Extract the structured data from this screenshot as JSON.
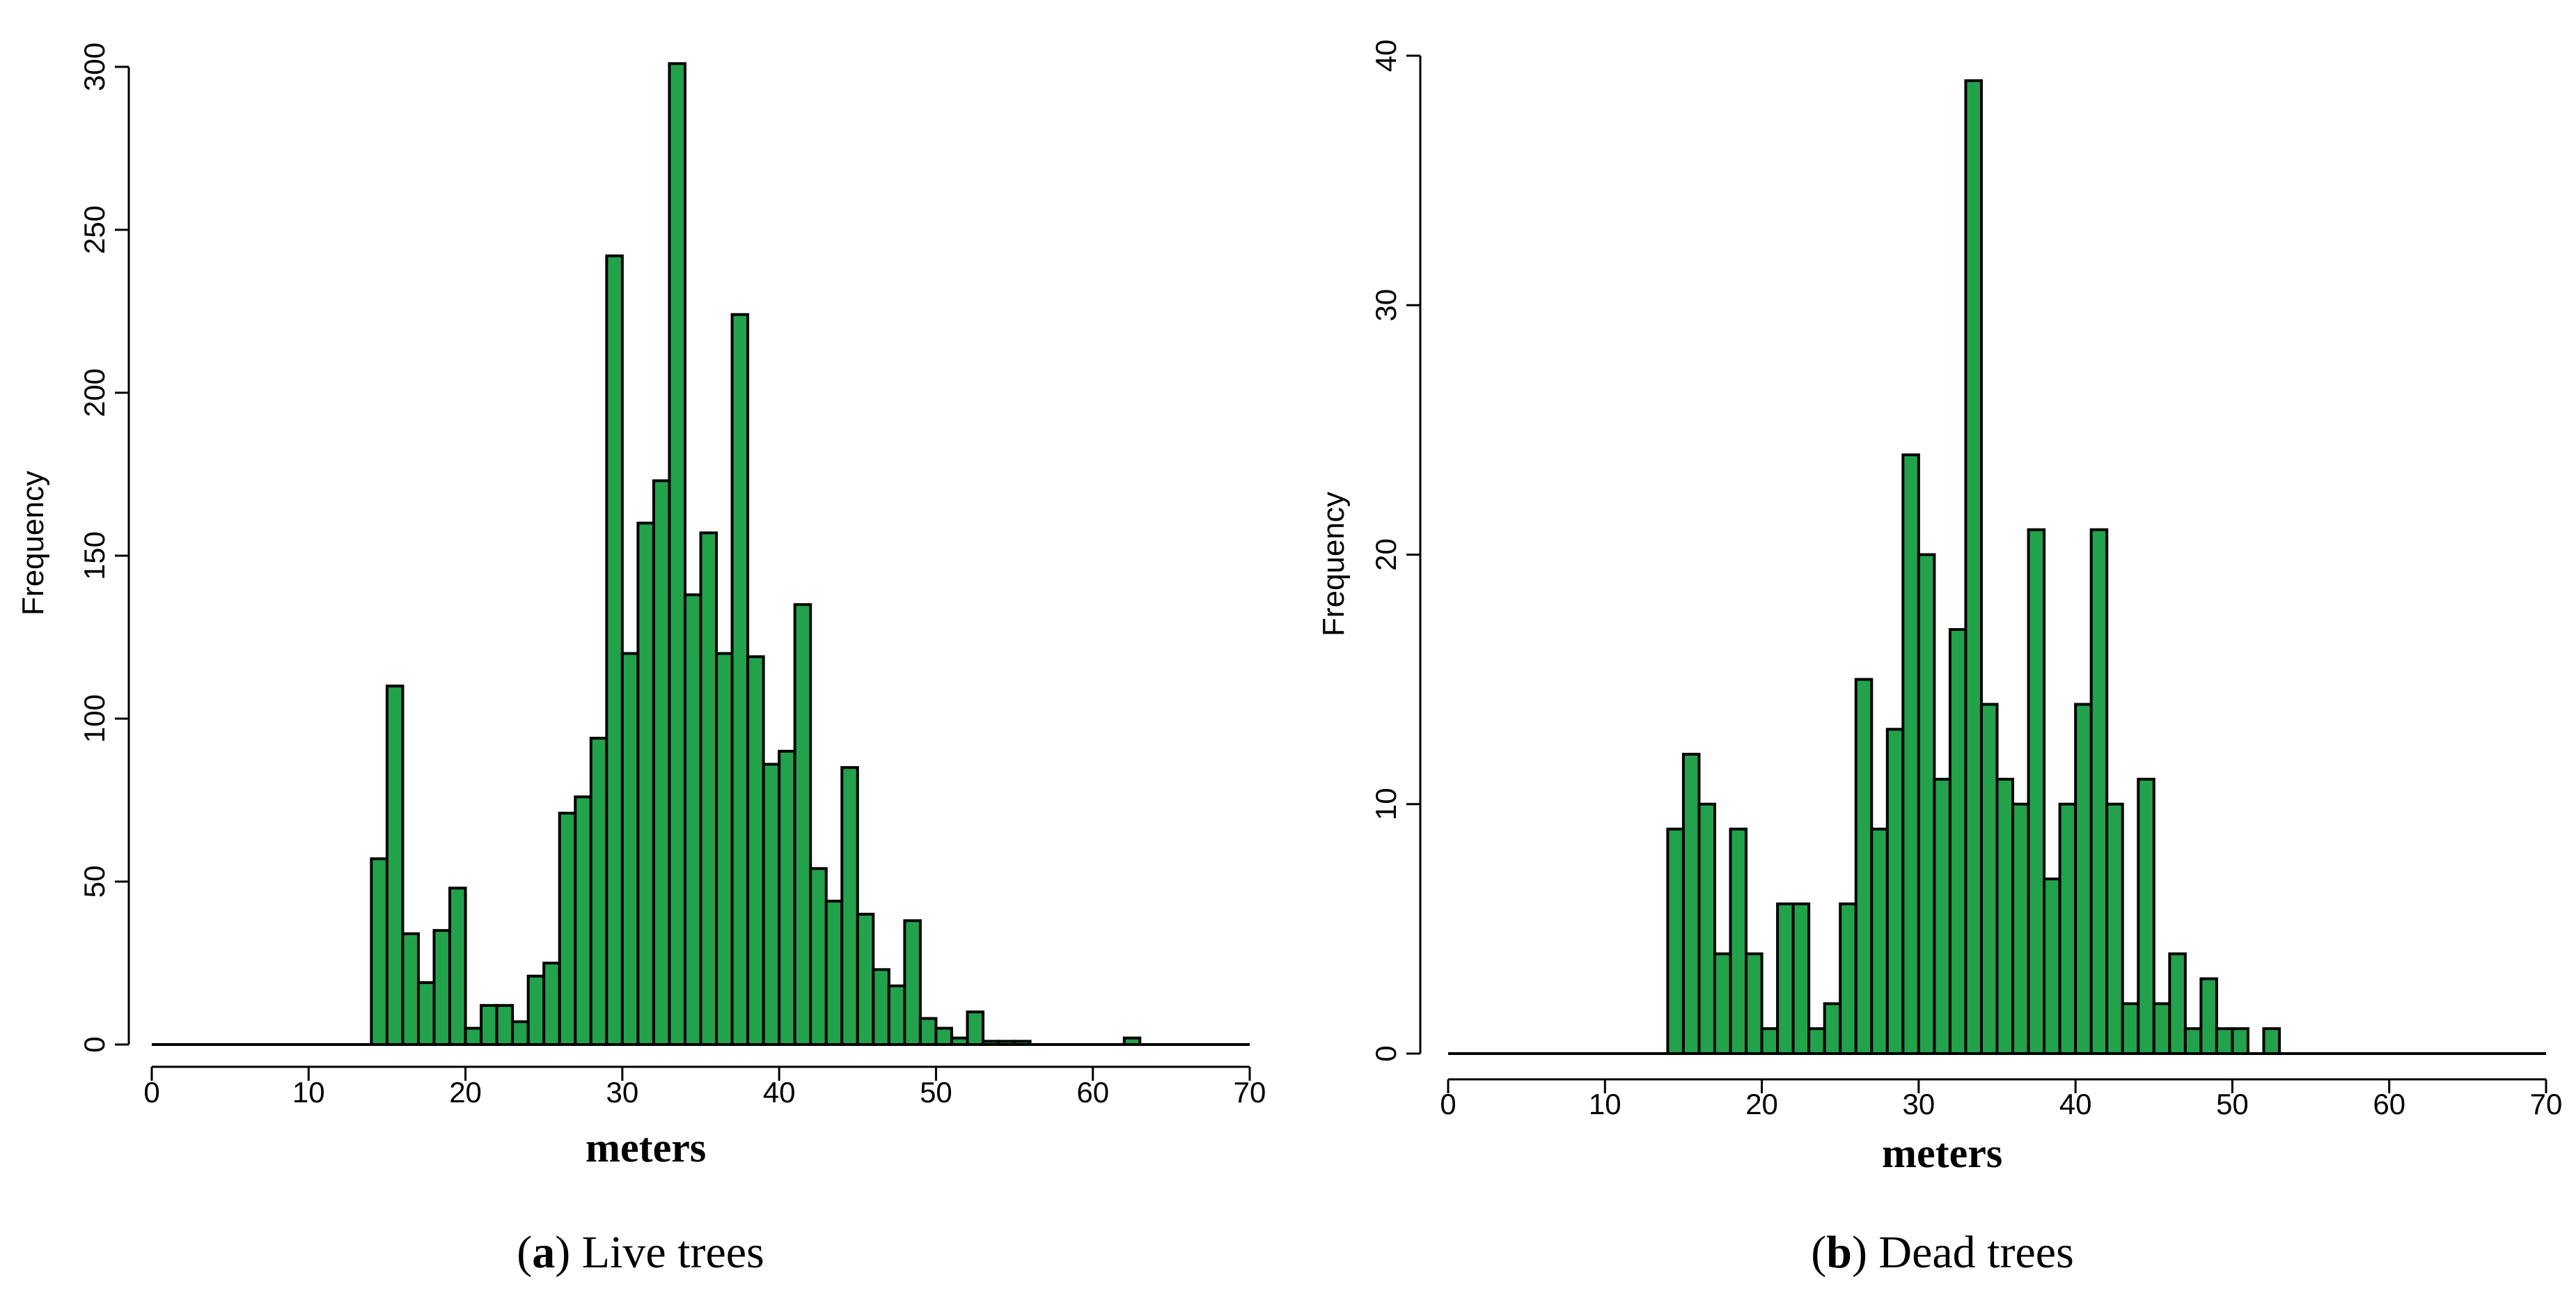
{
  "chart_data": [
    {
      "type": "bar",
      "subplot_letter": "a",
      "caption": "Live trees",
      "xlabel": "meters",
      "ylabel": "Frequency",
      "xlim": [
        0,
        70
      ],
      "ylim": [
        0,
        300
      ],
      "xticks": [
        0,
        10,
        20,
        30,
        40,
        50,
        60,
        70
      ],
      "yticks": [
        0,
        50,
        100,
        150,
        200,
        250,
        300
      ],
      "bin_width": 1,
      "bins": [
        [
          14,
          57
        ],
        [
          15,
          110
        ],
        [
          16,
          34
        ],
        [
          17,
          19
        ],
        [
          18,
          35
        ],
        [
          19,
          48
        ],
        [
          20,
          5
        ],
        [
          21,
          12
        ],
        [
          22,
          12
        ],
        [
          23,
          7
        ],
        [
          24,
          21
        ],
        [
          25,
          25
        ],
        [
          26,
          71
        ],
        [
          27,
          76
        ],
        [
          28,
          94
        ],
        [
          29,
          242
        ],
        [
          30,
          120
        ],
        [
          31,
          160
        ],
        [
          32,
          173
        ],
        [
          33,
          301
        ],
        [
          34,
          138
        ],
        [
          35,
          157
        ],
        [
          36,
          120
        ],
        [
          37,
          224
        ],
        [
          38,
          119
        ],
        [
          39,
          86
        ],
        [
          40,
          90
        ],
        [
          41,
          135
        ],
        [
          42,
          54
        ],
        [
          43,
          44
        ],
        [
          44,
          85
        ],
        [
          45,
          40
        ],
        [
          46,
          23
        ],
        [
          47,
          18
        ],
        [
          48,
          38
        ],
        [
          49,
          8
        ],
        [
          50,
          5
        ],
        [
          51,
          2
        ],
        [
          52,
          10
        ],
        [
          53,
          1
        ],
        [
          54,
          1
        ],
        [
          55,
          1
        ],
        [
          62,
          2
        ]
      ],
      "grid": false
    },
    {
      "type": "bar",
      "subplot_letter": "b",
      "caption": "Dead trees",
      "xlabel": "meters",
      "ylabel": "Frequency",
      "xlim": [
        0,
        70
      ],
      "ylim": [
        0,
        40
      ],
      "xticks": [
        0,
        10,
        20,
        30,
        40,
        50,
        60,
        70
      ],
      "yticks": [
        0,
        10,
        20,
        30,
        40
      ],
      "bin_width": 1,
      "bins": [
        [
          14,
          9
        ],
        [
          15,
          12
        ],
        [
          16,
          10
        ],
        [
          17,
          4
        ],
        [
          18,
          9
        ],
        [
          19,
          4
        ],
        [
          20,
          1
        ],
        [
          21,
          6
        ],
        [
          22,
          6
        ],
        [
          23,
          1
        ],
        [
          24,
          2
        ],
        [
          25,
          6
        ],
        [
          26,
          15
        ],
        [
          27,
          9
        ],
        [
          28,
          13
        ],
        [
          29,
          24
        ],
        [
          30,
          20
        ],
        [
          31,
          11
        ],
        [
          32,
          17
        ],
        [
          33,
          39
        ],
        [
          34,
          14
        ],
        [
          35,
          11
        ],
        [
          36,
          10
        ],
        [
          37,
          21
        ],
        [
          38,
          7
        ],
        [
          39,
          10
        ],
        [
          40,
          14
        ],
        [
          41,
          21
        ],
        [
          42,
          10
        ],
        [
          43,
          2
        ],
        [
          44,
          11
        ],
        [
          45,
          2
        ],
        [
          46,
          4
        ],
        [
          47,
          1
        ],
        [
          48,
          3
        ],
        [
          49,
          1
        ],
        [
          50,
          1
        ],
        [
          52,
          1
        ]
      ],
      "grid": false
    }
  ],
  "style": {
    "bar_fill": "#22a24a",
    "bar_stroke": "#000000",
    "axis_color": "#000000"
  }
}
